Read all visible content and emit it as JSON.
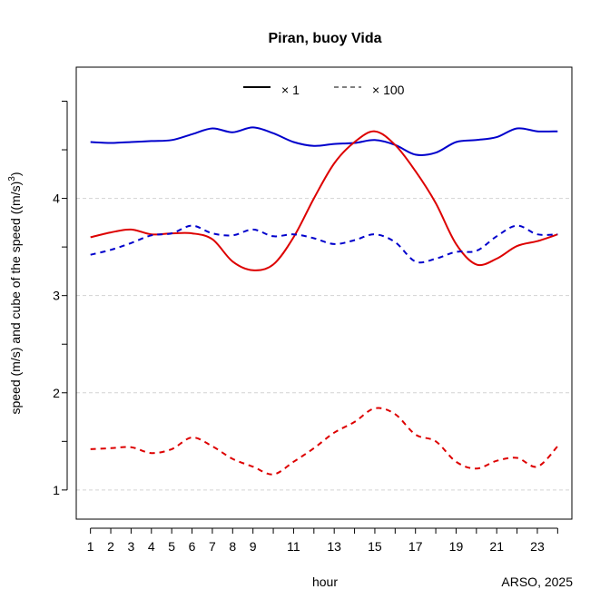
{
  "chart_data": {
    "type": "line",
    "title": "Piran, buoy Vida",
    "xlabel": "hour",
    "ylabel": "speed (m/s) and cube of the speed ((m/s)",
    "ylabel_superscript": "3",
    "ylabel_suffix": ")",
    "credit": "ARSO, 2025",
    "xlim": [
      0.3,
      24.7
    ],
    "ylim": [
      0.7,
      5.35
    ],
    "x_ticks": [
      1,
      2,
      3,
      4,
      5,
      6,
      7,
      8,
      9,
      11,
      13,
      15,
      17,
      19,
      21,
      23
    ],
    "x_tick_marks": [
      1,
      2,
      3,
      4,
      5,
      6,
      7,
      8,
      9,
      10,
      11,
      12,
      13,
      14,
      15,
      16,
      17,
      18,
      19,
      20,
      21,
      22,
      23,
      24
    ],
    "y_ticks": [
      1,
      2,
      3,
      4
    ],
    "y_tick_marks": [
      1,
      1.5,
      2,
      2.5,
      3,
      3.5,
      4,
      4.5,
      5
    ],
    "grid": "horizontal dashed at 1, 2, 3, 4",
    "legend": {
      "position": "top",
      "entries": [
        {
          "label": "× 1",
          "style": "solid"
        },
        {
          "label": "× 100",
          "style": "dashed"
        }
      ]
    },
    "colors": {
      "blue": "#0000cc",
      "red": "#dd0000",
      "grid": "#d3d3d3"
    },
    "x": [
      1,
      2,
      3,
      4,
      5,
      6,
      7,
      8,
      9,
      10,
      11,
      12,
      13,
      14,
      15,
      16,
      17,
      18,
      19,
      20,
      21,
      22,
      23,
      24
    ],
    "series": [
      {
        "color": "blue",
        "style": "solid",
        "values": [
          4.58,
          4.57,
          4.58,
          4.59,
          4.6,
          4.66,
          4.72,
          4.68,
          4.73,
          4.67,
          4.58,
          4.54,
          4.56,
          4.57,
          4.6,
          4.55,
          4.45,
          4.47,
          4.58,
          4.6,
          4.63,
          4.72,
          4.69,
          4.69
        ]
      },
      {
        "color": "red",
        "style": "solid",
        "values": [
          3.6,
          3.65,
          3.68,
          3.63,
          3.64,
          3.64,
          3.58,
          3.35,
          3.26,
          3.32,
          3.6,
          4.0,
          4.36,
          4.58,
          4.69,
          4.55,
          4.28,
          3.95,
          3.53,
          3.32,
          3.38,
          3.51,
          3.56,
          3.63
        ]
      },
      {
        "color": "blue",
        "style": "dashed",
        "values": [
          3.42,
          3.47,
          3.54,
          3.62,
          3.64,
          3.72,
          3.64,
          3.62,
          3.68,
          3.61,
          3.63,
          3.59,
          3.53,
          3.57,
          3.63,
          3.55,
          3.35,
          3.38,
          3.45,
          3.46,
          3.61,
          3.72,
          3.63,
          3.63
        ]
      },
      {
        "color": "red",
        "style": "dashed",
        "values": [
          1.42,
          1.43,
          1.44,
          1.38,
          1.42,
          1.54,
          1.45,
          1.32,
          1.24,
          1.16,
          1.29,
          1.43,
          1.59,
          1.7,
          1.84,
          1.78,
          1.57,
          1.5,
          1.29,
          1.22,
          1.3,
          1.33,
          1.24,
          1.45
        ]
      }
    ]
  }
}
